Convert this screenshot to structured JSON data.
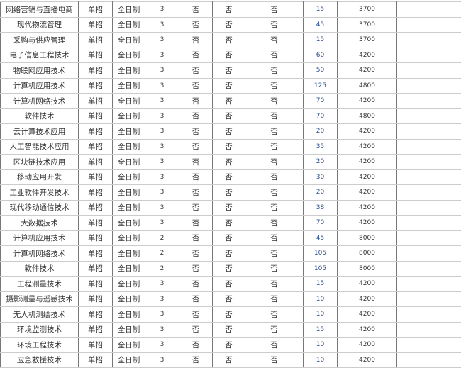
{
  "rows": [
    [
      "网络营销与直播电商",
      "单招",
      "全日制",
      "3",
      "否",
      "否",
      "否",
      "15",
      "3700",
      ""
    ],
    [
      "现代物流管理",
      "单招",
      "全日制",
      "3",
      "否",
      "否",
      "否",
      "45",
      "3700",
      ""
    ],
    [
      "采购与供应管理",
      "单招",
      "全日制",
      "3",
      "否",
      "否",
      "否",
      "15",
      "3700",
      ""
    ],
    [
      "电子信息工程技术",
      "单招",
      "全日制",
      "3",
      "否",
      "否",
      "否",
      "60",
      "4200",
      ""
    ],
    [
      "物联网应用技术",
      "单招",
      "全日制",
      "3",
      "否",
      "否",
      "否",
      "50",
      "4200",
      ""
    ],
    [
      "计算机应用技术",
      "单招",
      "全日制",
      "3",
      "否",
      "否",
      "否",
      "125",
      "4800",
      ""
    ],
    [
      "计算机网络技术",
      "单招",
      "全日制",
      "3",
      "否",
      "否",
      "否",
      "70",
      "4200",
      ""
    ],
    [
      "软件技术",
      "单招",
      "全日制",
      "3",
      "否",
      "否",
      "否",
      "70",
      "4800",
      ""
    ],
    [
      "云计算技术应用",
      "单招",
      "全日制",
      "3",
      "否",
      "否",
      "否",
      "20",
      "4200",
      ""
    ],
    [
      "人工智能技术应用",
      "单招",
      "全日制",
      "3",
      "否",
      "否",
      "否",
      "35",
      "4200",
      ""
    ],
    [
      "区块链技术应用",
      "单招",
      "全日制",
      "3",
      "否",
      "否",
      "否",
      "20",
      "4200",
      ""
    ],
    [
      "移动应用开发",
      "单招",
      "全日制",
      "3",
      "否",
      "否",
      "否",
      "30",
      "4200",
      ""
    ],
    [
      "工业软件开发技术",
      "单招",
      "全日制",
      "3",
      "否",
      "否",
      "否",
      "20",
      "4200",
      ""
    ],
    [
      "现代移动通信技术",
      "单招",
      "全日制",
      "3",
      "否",
      "否",
      "否",
      "38",
      "4200",
      ""
    ],
    [
      "大数据技术",
      "单招",
      "全日制",
      "3",
      "否",
      "否",
      "否",
      "70",
      "4200",
      ""
    ],
    [
      "计算机应用技术",
      "单招",
      "全日制",
      "2",
      "否",
      "否",
      "否",
      "45",
      "8000",
      ""
    ],
    [
      "计算机网络技术",
      "单招",
      "全日制",
      "2",
      "否",
      "否",
      "否",
      "105",
      "8000",
      ""
    ],
    [
      "软件技术",
      "单招",
      "全日制",
      "2",
      "否",
      "否",
      "否",
      "105",
      "8000",
      ""
    ],
    [
      "工程测量技术",
      "单招",
      "全日制",
      "3",
      "否",
      "否",
      "否",
      "15",
      "4200",
      ""
    ],
    [
      "摄影测量与遥感技术",
      "单招",
      "全日制",
      "3",
      "否",
      "否",
      "否",
      "10",
      "4200",
      ""
    ],
    [
      "无人机测绘技术",
      "单招",
      "全日制",
      "3",
      "否",
      "否",
      "否",
      "10",
      "4200",
      ""
    ],
    [
      "环境监测技术",
      "单招",
      "全日制",
      "3",
      "否",
      "否",
      "否",
      "15",
      "4200",
      ""
    ],
    [
      "环境工程技术",
      "单招",
      "全日制",
      "3",
      "否",
      "否",
      "否",
      "10",
      "4200",
      ""
    ],
    [
      "应急救援技术",
      "单招",
      "全日制",
      "3",
      "否",
      "否",
      "否",
      "10",
      "4200",
      ""
    ]
  ]
}
